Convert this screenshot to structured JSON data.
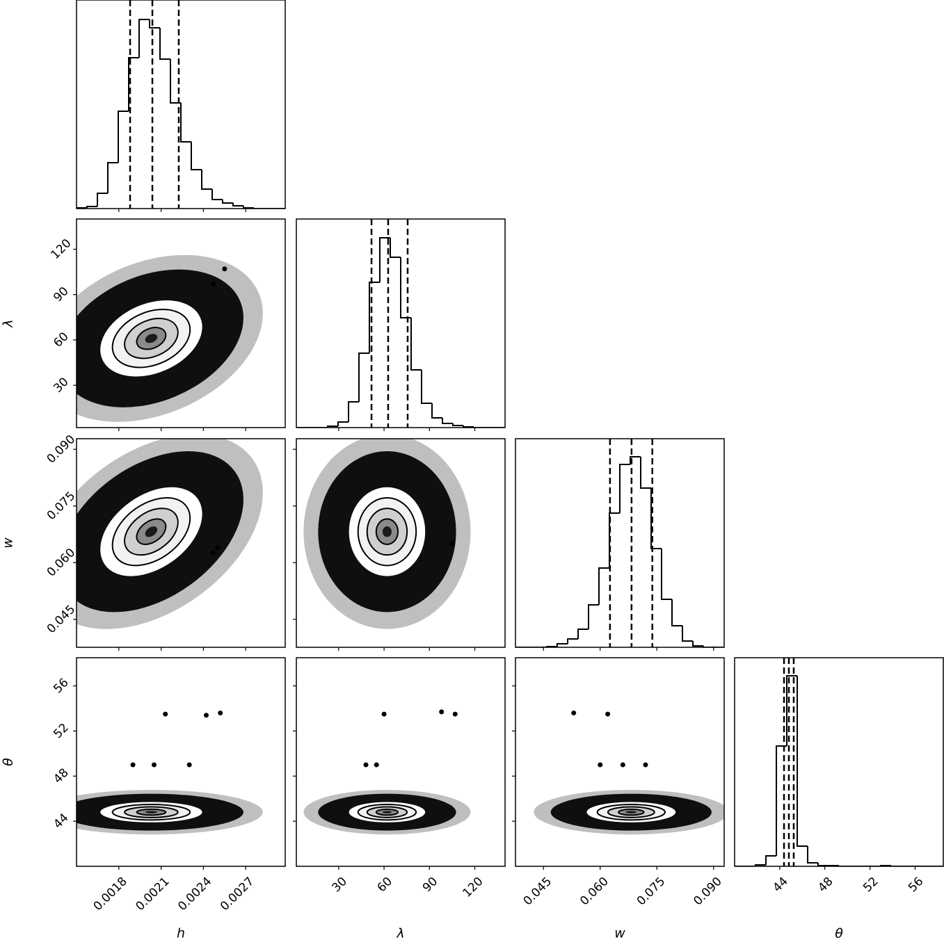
{
  "chart_data": {
    "type": "corner",
    "color": "#000000",
    "hist_ylim": [
      0,
      300
    ],
    "parameters": [
      {
        "label": "h",
        "lim": [
          0.0015,
          0.00298
        ],
        "ticks": [
          0.0018,
          0.0021,
          0.0024,
          0.0027
        ],
        "bins": [
          0.0015,
          0.001574,
          0.001648,
          0.001722,
          0.001796,
          0.00187,
          0.001944,
          0.002018,
          0.002092,
          0.002166,
          0.00224,
          0.002314,
          0.002388,
          0.002462,
          0.002536,
          0.00261,
          0.002684,
          0.002758,
          0.002832,
          0.002906,
          0.00298
        ],
        "counts": [
          1,
          3,
          22,
          66,
          140,
          217,
          272,
          260,
          215,
          152,
          96,
          56,
          28,
          13,
          8,
          4,
          1,
          0,
          0,
          0
        ],
        "quantiles": [
          0.00188,
          0.002038,
          0.002225
        ]
      },
      {
        "label": "λ",
        "lim": [
          2,
          140
        ],
        "ticks": [
          30,
          60,
          90,
          120
        ],
        "bins": [
          2,
          8.9,
          15.8,
          22.7,
          29.6,
          36.5,
          43.4,
          50.3,
          57.2,
          64.1,
          71,
          77.9,
          84.8,
          91.7,
          98.6,
          105.5,
          112.4,
          119.3,
          126.2,
          133.1,
          140
        ],
        "counts": [
          0,
          0,
          0,
          2,
          8,
          37,
          107,
          209,
          273,
          245,
          158,
          83,
          35,
          14,
          6,
          3,
          1,
          0,
          0,
          0
        ],
        "quantiles": [
          51.7,
          62.7,
          75.6
        ]
      },
      {
        "label": "w",
        "lim": [
          0.0376,
          0.0928
        ],
        "ticks": [
          0.045,
          {
            "value": 0.06,
            "label": "0.060"
          },
          0.075,
          {
            "value": 0.09,
            "label": "0.090"
          }
        ],
        "bins": [
          0.0376,
          0.04036,
          0.04312,
          0.04588,
          0.04864,
          0.0514,
          0.05416,
          0.05692,
          0.05968,
          0.06244,
          0.0652,
          0.06796,
          0.07072,
          0.07348,
          0.07624,
          0.079,
          0.08176,
          0.08452,
          0.08728,
          0.09004,
          0.0928
        ],
        "counts": [
          0,
          0,
          0,
          1,
          5,
          12,
          26,
          61,
          114,
          193,
          263,
          274,
          229,
          142,
          69,
          31,
          9,
          2,
          0,
          0
        ],
        "quantiles": [
          0.0626,
          0.0683,
          0.0738
        ]
      },
      {
        "label": "θ",
        "lim": [
          40,
          58.5
        ],
        "ticks": [
          44,
          48,
          52,
          56
        ],
        "bins": [
          40,
          40.925,
          41.85,
          42.775,
          43.7,
          44.625,
          45.55,
          46.475,
          47.4,
          48.325,
          49.25,
          50.175,
          51.1,
          52.025,
          52.95,
          53.875,
          54.8,
          55.725,
          56.65,
          57.575,
          58.5
        ],
        "counts": [
          0,
          0,
          2,
          15,
          173,
          274,
          29,
          5,
          1,
          1,
          0,
          0,
          0,
          0,
          1,
          0,
          0,
          0,
          0,
          0
        ],
        "quantiles": [
          44.38,
          44.81,
          45.24
        ]
      }
    ],
    "pairs": [
      [
        {
          "center": [
            0.00203,
            61
          ],
          "sigma": [
            0.000172,
            12
          ],
          "correlation": 0.3,
          "clumps": [
            [
              0.00247,
              97
            ],
            [
              0.00255,
              107
            ]
          ]
        }
      ],
      [
        {
          "center": [
            0.00203,
            0.0682
          ],
          "sigma": [
            0.000172,
            0.0056
          ],
          "correlation": 0.4,
          "clumps": [
            [
              0.0025,
              0.064
            ],
            [
              0.00247,
              0.0626
            ]
          ]
        },
        {
          "center": [
            62,
            0.0682
          ],
          "sigma": [
            12,
            0.0056
          ],
          "correlation": 0,
          "clumps": [
            [
              105,
              0.065
            ]
          ]
        }
      ],
      [
        {
          "center": [
            0.00203,
            44.8
          ],
          "sigma": [
            0.000172,
            0.43
          ],
          "correlation": 0,
          "clumps": [
            [
              0.00213,
              53.5
            ],
            [
              0.00252,
              53.6
            ],
            [
              0.00242,
              53.4
            ],
            [
              0.0019,
              49
            ],
            [
              0.00205,
              49
            ],
            [
              0.0023,
              49
            ]
          ]
        },
        {
          "center": [
            62,
            44.8
          ],
          "sigma": [
            12,
            0.43
          ],
          "correlation": 0,
          "clumps": [
            [
              60,
              53.5
            ],
            [
              98,
              53.7
            ],
            [
              107,
              53.5
            ],
            [
              55,
              49
            ],
            [
              48,
              49
            ]
          ]
        },
        {
          "center": [
            0.0682,
            44.8
          ],
          "sigma": [
            0.0056,
            0.43
          ],
          "correlation": 0,
          "clumps": [
            [
              0.062,
              53.5
            ],
            [
              0.053,
              53.6
            ],
            [
              0.066,
              49
            ],
            [
              0.072,
              49
            ],
            [
              0.06,
              49
            ]
          ]
        }
      ]
    ]
  }
}
